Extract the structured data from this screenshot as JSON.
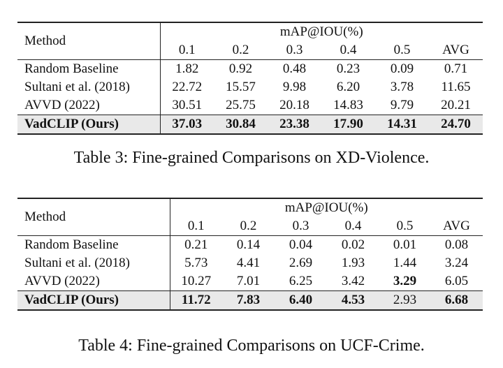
{
  "table3": {
    "method_header": "Method",
    "group_header": "mAP@IOU(%)",
    "columns": [
      "0.1",
      "0.2",
      "0.3",
      "0.4",
      "0.5",
      "AVG"
    ],
    "rows": [
      {
        "method": "Random Baseline",
        "values": [
          "1.82",
          "0.92",
          "0.48",
          "0.23",
          "0.09",
          "0.71"
        ]
      },
      {
        "method": "Sultani et al. (2018)",
        "values": [
          "22.72",
          "15.57",
          "9.98",
          "6.20",
          "3.78",
          "11.65"
        ]
      },
      {
        "method": "AVVD (2022)",
        "values": [
          "30.51",
          "25.75",
          "20.18",
          "14.83",
          "9.79",
          "20.21"
        ]
      },
      {
        "method": "VadCLIP (Ours)",
        "values": [
          "37.03",
          "30.84",
          "23.38",
          "17.90",
          "14.31",
          "24.70"
        ]
      }
    ],
    "caption": "Table 3: Fine-grained Comparisons on XD-Violence."
  },
  "table4": {
    "method_header": "Method",
    "group_header": "mAP@IOU(%)",
    "columns": [
      "0.1",
      "0.2",
      "0.3",
      "0.4",
      "0.5",
      "AVG"
    ],
    "rows": [
      {
        "method": "Random Baseline",
        "values": [
          "0.21",
          "0.14",
          "0.04",
          "0.02",
          "0.01",
          "0.08"
        ]
      },
      {
        "method": "Sultani et al. (2018)",
        "values": [
          "5.73",
          "4.41",
          "2.69",
          "1.93",
          "1.44",
          "3.24"
        ]
      },
      {
        "method": "AVVD (2022)",
        "values": [
          "10.27",
          "7.01",
          "6.25",
          "3.42",
          "3.29",
          "6.05"
        ]
      },
      {
        "method": "VadCLIP (Ours)",
        "values": [
          "11.72",
          "7.83",
          "6.40",
          "4.53",
          "2.93",
          "6.68"
        ]
      }
    ],
    "caption": "Table 4: Fine-grained Comparisons on UCF-Crime."
  }
}
